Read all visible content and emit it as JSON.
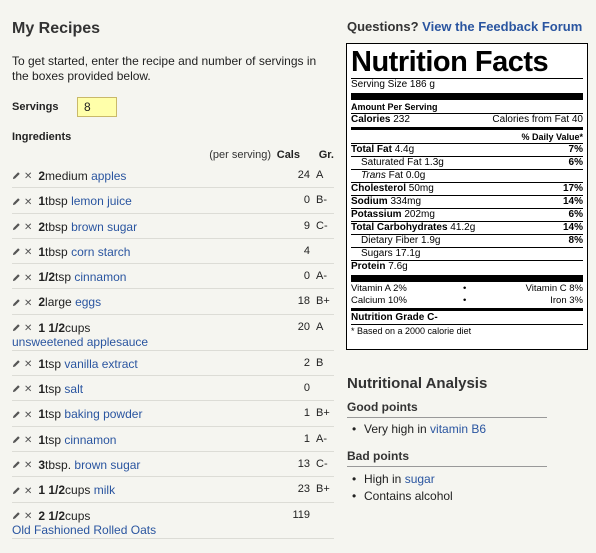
{
  "left": {
    "title": "My Recipes",
    "intro": "To get started, enter the recipe and number of servings in the boxes provided below.",
    "servings_label": "Servings",
    "servings_value": "8",
    "ingredients_heading": "Ingredients",
    "col_per": "(per serving)",
    "col_cals": "Cals",
    "col_gr": "Gr."
  },
  "ingredients": [
    {
      "qty": "2",
      "unit": "medium",
      "name": "apples",
      "name2": "",
      "cals": "24",
      "grade": "A"
    },
    {
      "qty": "1",
      "unit": "tbsp",
      "name": "lemon juice",
      "name2": "",
      "cals": "0",
      "grade": "B-"
    },
    {
      "qty": "2",
      "unit": "tbsp",
      "name": "brown sugar",
      "name2": "",
      "cals": "9",
      "grade": "C-"
    },
    {
      "qty": "1",
      "unit": "tbsp",
      "name": "corn starch",
      "name2": "",
      "cals": "4",
      "grade": ""
    },
    {
      "qty": "1/2",
      "unit": "tsp",
      "name": "cinnamon",
      "name2": "",
      "cals": "0",
      "grade": "A-"
    },
    {
      "qty": "2",
      "unit": "large",
      "name": "eggs",
      "name2": "",
      "cals": "18",
      "grade": "B+"
    },
    {
      "qty": "1 1/2",
      "unit": "cups",
      "name": "",
      "name2": "unsweetened applesauce",
      "cals": "20",
      "grade": "A"
    },
    {
      "qty": "1",
      "unit": "tsp",
      "name": "vanilla extract",
      "name2": "",
      "cals": "2",
      "grade": "B"
    },
    {
      "qty": "1",
      "unit": "tsp",
      "name": "salt",
      "name2": "",
      "cals": "0",
      "grade": ""
    },
    {
      "qty": "1",
      "unit": "tsp",
      "name": "baking powder",
      "name2": "",
      "cals": "1",
      "grade": "B+"
    },
    {
      "qty": "1",
      "unit": "tsp",
      "name": "cinnamon",
      "name2": "",
      "cals": "1",
      "grade": "A-"
    },
    {
      "qty": "3",
      "unit": "tbsp.",
      "name": "brown sugar",
      "name2": "",
      "cals": "13",
      "grade": "C-"
    },
    {
      "qty": "1 1/2",
      "unit": "cups",
      "name": "milk",
      "name2": "",
      "cals": "23",
      "grade": "B+"
    },
    {
      "qty": "2 1/2",
      "unit": "cups",
      "name": "",
      "name2": "Old Fashioned Rolled Oats",
      "cals": "119",
      "grade": ""
    }
  ],
  "questions": {
    "prefix": "Questions?",
    "link": "View the Feedback Forum"
  },
  "nutrition": {
    "title": "Nutrition Facts",
    "serving_size": "Serving Size 186 g",
    "amount_per_serving": "Amount Per Serving",
    "calories_label": "Calories",
    "calories": "232",
    "calories_fat": "Calories from Fat 40",
    "daily_value": "% Daily Value*",
    "total_fat_label": "Total Fat",
    "total_fat": "4.4g",
    "total_fat_pct": "7%",
    "sat_fat_label": "Saturated Fat",
    "sat_fat": "1.3g",
    "sat_fat_pct": "6%",
    "trans_fat_label": "Trans",
    "trans_fat_rest": " Fat 0.0g",
    "cholesterol_label": "Cholesterol",
    "cholesterol": "50mg",
    "cholesterol_pct": "17%",
    "sodium_label": "Sodium",
    "sodium": "334mg",
    "sodium_pct": "14%",
    "potassium_label": "Potassium",
    "potassium": "202mg",
    "potassium_pct": "6%",
    "carbs_label": "Total Carbohydrates",
    "carbs": "41.2g",
    "carbs_pct": "14%",
    "fiber_label": "Dietary Fiber",
    "fiber": "1.9g",
    "fiber_pct": "8%",
    "sugars": "Sugars 17.1g",
    "protein_label": "Protein",
    "protein": "7.6g",
    "vit_a": "Vitamin A 2%",
    "vit_c": "Vitamin C 8%",
    "calcium": "Calcium 10%",
    "iron": "Iron 3%",
    "bullet": "•",
    "grade": "Nutrition Grade C-",
    "footnote": "* Based on a 2000 calorie diet"
  },
  "analysis": {
    "title": "Nutritional Analysis",
    "good_heading": "Good points",
    "good_prefix": "Very high in ",
    "good_link": "vitamin B6",
    "bad_heading": "Bad points",
    "bad1_prefix": "High in ",
    "bad1_link": "sugar",
    "bad2": "Contains alcohol"
  }
}
